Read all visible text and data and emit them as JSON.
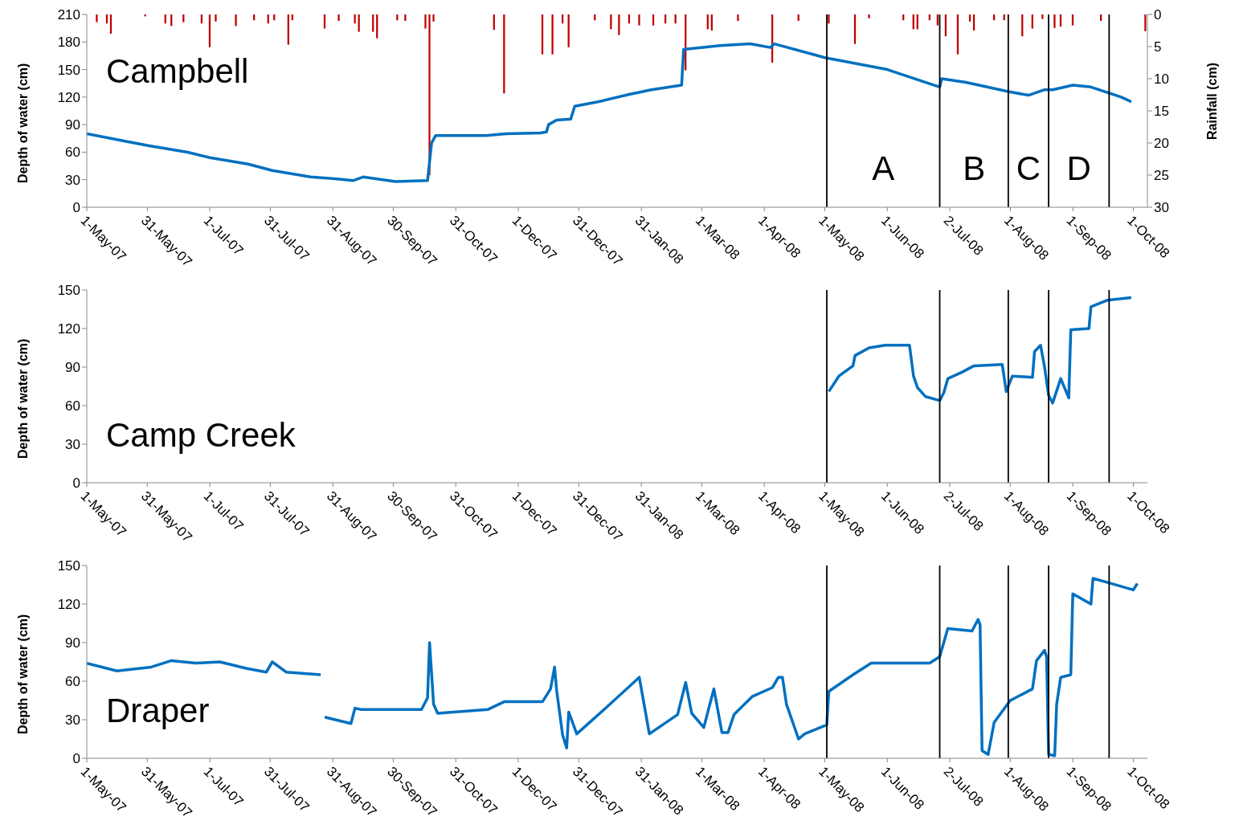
{
  "chart_data": [
    {
      "type": "line",
      "title": "Campbell",
      "ylabel": "Depth of water (cm)",
      "y2label": "Rainfall (cm)",
      "xlim": [
        "2007-05-01",
        "2008-10-08"
      ],
      "xticks": [
        {
          "value": "2007-05-01",
          "label": "1-May-07"
        },
        {
          "value": "2007-05-31",
          "label": "31-May-07"
        },
        {
          "value": "2007-07-01",
          "label": "1-Jul-07"
        },
        {
          "value": "2007-07-31",
          "label": "31-Jul-07"
        },
        {
          "value": "2007-08-31",
          "label": "31-Aug-07"
        },
        {
          "value": "2007-09-30",
          "label": "30-Sep-07"
        },
        {
          "value": "2007-10-31",
          "label": "31-Oct-07"
        },
        {
          "value": "2007-12-01",
          "label": "1-Dec-07"
        },
        {
          "value": "2007-12-31",
          "label": "31-Dec-07"
        },
        {
          "value": "2008-01-31",
          "label": "31-Jan-08"
        },
        {
          "value": "2008-03-01",
          "label": "1-Mar-08"
        },
        {
          "value": "2008-04-01",
          "label": "1-Apr-08"
        },
        {
          "value": "2008-05-01",
          "label": "1-May-08"
        },
        {
          "value": "2008-06-01",
          "label": "1-Jun-08"
        },
        {
          "value": "2008-07-02",
          "label": "2-Jul-08"
        },
        {
          "value": "2008-08-01",
          "label": "1-Aug-08"
        },
        {
          "value": "2008-09-01",
          "label": "1-Sep-08"
        },
        {
          "value": "2008-10-01",
          "label": "1-Oct-08"
        }
      ],
      "ylim": [
        0,
        210
      ],
      "yticks": [
        0,
        30,
        60,
        90,
        120,
        150,
        180,
        210
      ],
      "y2lim": [
        30,
        0
      ],
      "y2ticks": [
        0,
        5,
        10,
        15,
        20,
        25,
        30
      ],
      "series": [
        {
          "color": "#0070c0",
          "x": [
            "2007-05-01",
            "2007-05-20",
            "2007-06-01",
            "2007-06-20",
            "2007-07-01",
            "2007-07-20",
            "2007-08-01",
            "2007-08-20",
            "2007-09-01",
            "2007-09-10",
            "2007-09-15",
            "2007-10-01",
            "2007-10-17",
            "2007-10-19",
            "2007-10-21",
            "2007-11-15",
            "2007-11-25",
            "2007-12-12",
            "2007-12-15",
            "2007-12-16",
            "2007-12-20",
            "2007-12-27",
            "2007-12-29",
            "2008-01-10",
            "2008-01-25",
            "2008-02-05",
            "2008-02-20",
            "2008-02-21",
            "2008-03-10",
            "2008-03-25",
            "2008-04-04",
            "2008-04-06",
            "2008-05-01",
            "2008-06-01",
            "2008-06-27",
            "2008-06-28",
            "2008-07-10",
            "2008-07-31",
            "2008-08-10",
            "2008-08-18",
            "2008-08-22",
            "2008-09-01",
            "2008-09-10",
            "2008-09-25",
            "2008-09-30"
          ],
          "values": [
            80,
            72,
            67,
            60,
            54,
            47,
            40,
            33,
            31,
            29,
            33,
            28,
            29,
            70,
            78,
            78,
            80,
            81,
            82,
            90,
            95,
            96,
            110,
            115,
            123,
            128,
            133,
            172,
            176,
            178,
            174,
            178,
            163,
            150,
            131,
            140,
            136,
            126,
            122,
            128,
            128,
            133,
            131,
            120,
            115
          ]
        },
        {
          "type": "bar",
          "axis": "y2",
          "color": "#c00000",
          "x": [
            "2007-05-06",
            "2007-05-11",
            "2007-05-13",
            "2007-05-30",
            "2007-06-09",
            "2007-06-12",
            "2007-06-18",
            "2007-06-27",
            "2007-07-01",
            "2007-07-04",
            "2007-07-14",
            "2007-07-23",
            "2007-07-30",
            "2007-08-02",
            "2007-08-09",
            "2007-08-11",
            "2007-08-27",
            "2007-09-03",
            "2007-09-11",
            "2007-09-13",
            "2007-09-20",
            "2007-09-22",
            "2007-10-02",
            "2007-10-06",
            "2007-10-16",
            "2007-10-18",
            "2007-10-20",
            "2007-11-19",
            "2007-11-24",
            "2007-12-13",
            "2007-12-18",
            "2007-12-23",
            "2007-12-26",
            "2008-01-08",
            "2008-01-16",
            "2008-01-20",
            "2008-01-25",
            "2008-01-30",
            "2008-02-06",
            "2008-02-12",
            "2008-02-17",
            "2008-02-22",
            "2008-03-04",
            "2008-03-06",
            "2008-03-19",
            "2008-04-05",
            "2008-04-18",
            "2008-05-03",
            "2008-05-16",
            "2008-05-23",
            "2008-06-09",
            "2008-06-14",
            "2008-06-16",
            "2008-06-22",
            "2008-06-26",
            "2008-06-30",
            "2008-07-06",
            "2008-07-12",
            "2008-07-14",
            "2008-07-24",
            "2008-07-29",
            "2008-08-07",
            "2008-08-12",
            "2008-08-17",
            "2008-08-23",
            "2008-08-26",
            "2008-09-01",
            "2008-09-15",
            "2008-10-07"
          ],
          "values": [
            1.2,
            1.4,
            3.0,
            0.3,
            1.4,
            1.8,
            1.2,
            1.4,
            5.1,
            1.1,
            1.8,
            0.9,
            1.4,
            0.9,
            4.7,
            0.9,
            2.2,
            1.0,
            1.4,
            2.7,
            2.7,
            3.7,
            0.9,
            1.0,
            2.2,
            25,
            1.1,
            2.4,
            12.3,
            6.2,
            6.2,
            1.4,
            5.1,
            0.9,
            2.3,
            3.2,
            1.4,
            1.7,
            1.7,
            1.4,
            1.4,
            8.7,
            2.3,
            2.5,
            1.0,
            7.5,
            1.0,
            1.4,
            4.6,
            0.6,
            0.9,
            2.3,
            2.3,
            0.9,
            1.7,
            3.4,
            6.2,
            1.1,
            2.5,
            0.9,
            0.9,
            3.4,
            2.2,
            0.7,
            2.1,
            1.9,
            1.7,
            1.0,
            2.6
          ]
        }
      ],
      "ref_lines": [
        {
          "axis": "x",
          "value": "2008-05-02",
          "color": "#000000"
        },
        {
          "axis": "x",
          "value": "2008-06-27",
          "color": "#000000"
        },
        {
          "axis": "x",
          "value": "2008-07-31",
          "color": "#000000"
        },
        {
          "axis": "x",
          "value": "2008-08-20",
          "color": "#000000"
        },
        {
          "axis": "x",
          "value": "2008-09-19",
          "color": "#000000"
        }
      ],
      "annotations": [
        "A",
        "B",
        "C",
        "D"
      ],
      "grid": false
    },
    {
      "type": "line",
      "title": "Camp Creek",
      "ylabel": "Depth of water (cm)",
      "xlim": [
        "2007-05-01",
        "2008-10-08"
      ],
      "xticks": [
        {
          "value": "2007-05-01",
          "label": "1-May-07"
        },
        {
          "value": "2007-05-31",
          "label": "31-May-07"
        },
        {
          "value": "2007-07-01",
          "label": "1-Jul-07"
        },
        {
          "value": "2007-07-31",
          "label": "31-Jul-07"
        },
        {
          "value": "2007-08-31",
          "label": "31-Aug-07"
        },
        {
          "value": "2007-09-30",
          "label": "30-Sep-07"
        },
        {
          "value": "2007-10-31",
          "label": "31-Oct-07"
        },
        {
          "value": "2007-12-01",
          "label": "1-Dec-07"
        },
        {
          "value": "2007-12-31",
          "label": "31-Dec-07"
        },
        {
          "value": "2008-01-31",
          "label": "31-Jan-08"
        },
        {
          "value": "2008-03-01",
          "label": "1-Mar-08"
        },
        {
          "value": "2008-04-01",
          "label": "1-Apr-08"
        },
        {
          "value": "2008-05-01",
          "label": "1-May-08"
        },
        {
          "value": "2008-06-01",
          "label": "1-Jun-08"
        },
        {
          "value": "2008-07-02",
          "label": "2-Jul-08"
        },
        {
          "value": "2008-08-01",
          "label": "1-Aug-08"
        },
        {
          "value": "2008-09-01",
          "label": "1-Sep-08"
        },
        {
          "value": "2008-10-01",
          "label": "1-Oct-08"
        }
      ],
      "ylim": [
        0,
        150
      ],
      "yticks": [
        0,
        30,
        60,
        90,
        120,
        150
      ],
      "series": [
        {
          "color": "#0070c0",
          "x": [
            "2008-05-03",
            "2008-05-08",
            "2008-05-15",
            "2008-05-16",
            "2008-05-23",
            "2008-05-31",
            "2008-06-12",
            "2008-06-14",
            "2008-06-16",
            "2008-06-20",
            "2008-06-27",
            "2008-06-29",
            "2008-07-01",
            "2008-07-08",
            "2008-07-14",
            "2008-07-28",
            "2008-07-30",
            "2008-08-02",
            "2008-08-12",
            "2008-08-13",
            "2008-08-16",
            "2008-08-18",
            "2008-08-20",
            "2008-08-22",
            "2008-08-26",
            "2008-08-30",
            "2008-08-31",
            "2008-09-09",
            "2008-09-10",
            "2008-09-18",
            "2008-09-30"
          ],
          "values": [
            71,
            83,
            91,
            99,
            105,
            107,
            107,
            83,
            74,
            67,
            64,
            70,
            81,
            86,
            91,
            92,
            71,
            83,
            82,
            102,
            107,
            90,
            68,
            62,
            81,
            66,
            119,
            120,
            137,
            142,
            144
          ]
        }
      ],
      "ref_lines": [
        {
          "axis": "x",
          "value": "2008-05-02",
          "color": "#000000"
        },
        {
          "axis": "x",
          "value": "2008-06-27",
          "color": "#000000"
        },
        {
          "axis": "x",
          "value": "2008-07-31",
          "color": "#000000"
        },
        {
          "axis": "x",
          "value": "2008-08-20",
          "color": "#000000"
        },
        {
          "axis": "x",
          "value": "2008-09-19",
          "color": "#000000"
        }
      ],
      "grid": false
    },
    {
      "type": "line",
      "title": "Draper",
      "ylabel": "Depth of water (cm)",
      "xlim": [
        "2007-05-01",
        "2008-10-08"
      ],
      "xticks": [
        {
          "value": "2007-05-01",
          "label": "1-May-07"
        },
        {
          "value": "2007-05-31",
          "label": "31-May-07"
        },
        {
          "value": "2007-07-01",
          "label": "1-Jul-07"
        },
        {
          "value": "2007-07-31",
          "label": "31-Jul-07"
        },
        {
          "value": "2007-08-31",
          "label": "31-Aug-07"
        },
        {
          "value": "2007-09-30",
          "label": "30-Sep-07"
        },
        {
          "value": "2007-10-31",
          "label": "31-Oct-07"
        },
        {
          "value": "2007-12-01",
          "label": "1-Dec-07"
        },
        {
          "value": "2007-12-31",
          "label": "31-Dec-07"
        },
        {
          "value": "2008-01-31",
          "label": "31-Jan-08"
        },
        {
          "value": "2008-03-01",
          "label": "1-Mar-08"
        },
        {
          "value": "2008-04-01",
          "label": "1-Apr-08"
        },
        {
          "value": "2008-05-01",
          "label": "1-May-08"
        },
        {
          "value": "2008-06-01",
          "label": "1-Jun-08"
        },
        {
          "value": "2008-07-02",
          "label": "2-Jul-08"
        },
        {
          "value": "2008-08-01",
          "label": "1-Aug-08"
        },
        {
          "value": "2008-09-01",
          "label": "1-Sep-08"
        },
        {
          "value": "2008-10-01",
          "label": "1-Oct-08"
        }
      ],
      "ylim": [
        0,
        150
      ],
      "yticks": [
        0,
        30,
        60,
        90,
        120,
        150
      ],
      "series": [
        {
          "color": "#0070c0",
          "x": [
            "2007-05-01",
            "2007-05-16",
            "2007-06-02",
            "2007-06-12",
            "2007-06-24",
            "2007-07-06",
            "2007-07-19",
            "2007-07-29",
            "2007-08-01",
            "2007-08-08",
            "2007-08-25",
            "2007-08-26",
            "2007-08-27",
            "2007-09-09",
            "2007-09-11",
            "2007-09-14",
            "2007-10-14",
            "2007-10-17",
            "2007-10-18",
            "2007-10-20",
            "2007-10-22",
            "2007-11-16",
            "2007-11-24",
            "2007-12-13",
            "2007-12-17",
            "2007-12-19",
            "2007-12-20",
            "2007-12-23",
            "2007-12-25",
            "2007-12-26",
            "2007-12-30",
            "2008-01-14",
            "2008-01-30",
            "2008-02-04",
            "2008-02-18",
            "2008-02-22",
            "2008-02-25",
            "2008-03-02",
            "2008-03-05",
            "2008-03-07",
            "2008-03-11",
            "2008-03-14",
            "2008-03-17",
            "2008-03-26",
            "2008-04-05",
            "2008-04-08",
            "2008-04-10",
            "2008-04-12",
            "2008-04-18",
            "2008-04-21",
            "2008-05-02",
            "2008-05-03",
            "2008-05-15",
            "2008-05-24",
            "2008-06-22",
            "2008-06-27",
            "2008-07-01",
            "2008-07-13",
            "2008-07-16",
            "2008-07-17",
            "2008-07-18",
            "2008-07-21",
            "2008-07-24",
            "2008-08-01",
            "2008-08-12",
            "2008-08-14",
            "2008-08-18",
            "2008-08-19",
            "2008-08-20",
            "2008-08-23",
            "2008-08-24",
            "2008-08-26",
            "2008-08-31",
            "2008-09-01",
            "2008-09-10",
            "2008-09-11",
            "2008-09-20",
            "2008-10-01",
            "2008-10-03"
          ],
          "values": [
            74,
            68,
            71,
            76,
            74,
            75,
            70,
            67,
            75,
            67,
            65,
            null,
            32,
            27,
            39,
            38,
            38,
            47,
            90,
            42,
            35,
            38,
            44,
            44,
            54,
            71,
            53,
            18,
            8,
            36,
            19,
            40,
            63,
            19,
            34,
            59,
            35,
            24,
            42,
            54,
            20,
            20,
            34,
            48,
            55,
            63,
            63,
            42,
            15,
            19,
            26,
            52,
            65,
            74,
            74,
            79,
            101,
            99,
            108,
            104,
            6,
            3,
            28,
            45,
            54,
            76,
            84,
            79,
            3,
            2,
            42,
            63,
            65,
            128,
            120,
            140,
            136,
            131,
            136
          ]
        }
      ],
      "ref_lines": [
        {
          "axis": "x",
          "value": "2008-05-02",
          "color": "#000000"
        },
        {
          "axis": "x",
          "value": "2008-06-27",
          "color": "#000000"
        },
        {
          "axis": "x",
          "value": "2008-07-31",
          "color": "#000000"
        },
        {
          "axis": "x",
          "value": "2008-08-20",
          "color": "#000000"
        },
        {
          "axis": "x",
          "value": "2008-09-19",
          "color": "#000000"
        }
      ],
      "grid": false
    }
  ]
}
